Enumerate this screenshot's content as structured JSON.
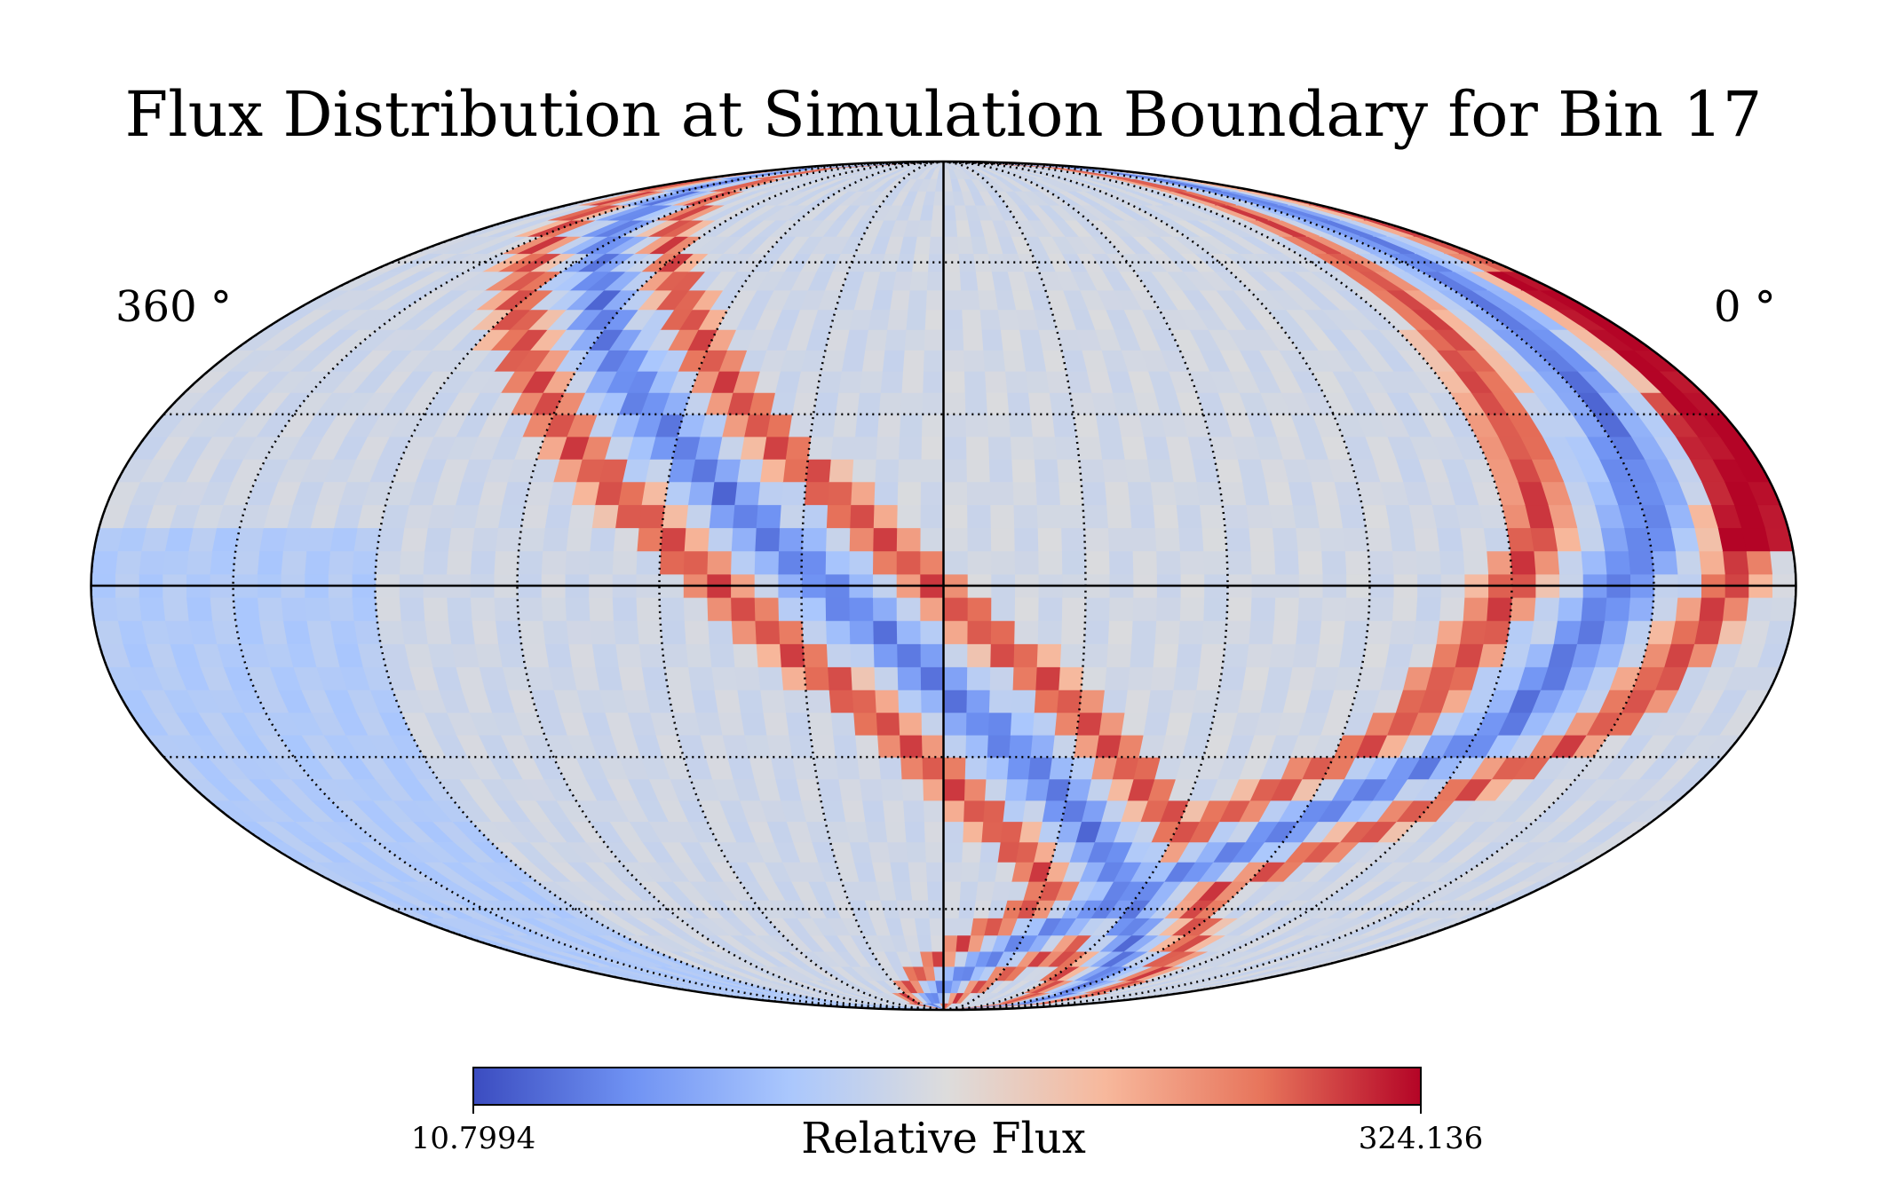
{
  "chart_data": {
    "type": "heatmap",
    "projection": "mollweide",
    "title": "Flux Distribution at Simulation Boundary for Bin 17",
    "lon_labels": {
      "left": "360$^\\circ$",
      "right": "0$^\\circ$",
      "left_display": "360 °",
      "right_display": "0 °"
    },
    "colorbar": {
      "label": "Relative Flux",
      "min": 10.7994,
      "max": 324.136,
      "min_label": "10.7994",
      "max_label": "324.136",
      "colormap": "coolwarm",
      "stops": [
        "#3b4cc0",
        "#6f92f3",
        "#aac7fd",
        "#dddcdc",
        "#f7b89c",
        "#e7745b",
        "#b40426"
      ]
    },
    "grid": true,
    "grid_lon_step_deg": 30,
    "grid_lat_values_deg": [
      -60,
      -30,
      0,
      30,
      60
    ],
    "description_features": {
      "center_region": "near-neutral low flux (light blue/gray)",
      "low_flux_band": "U-shaped blue band descending from upper-left, through bottom-center, up to upper-right",
      "high_flux_region": "red ridges flanking the band, strongest near upper-right (~324)"
    }
  }
}
